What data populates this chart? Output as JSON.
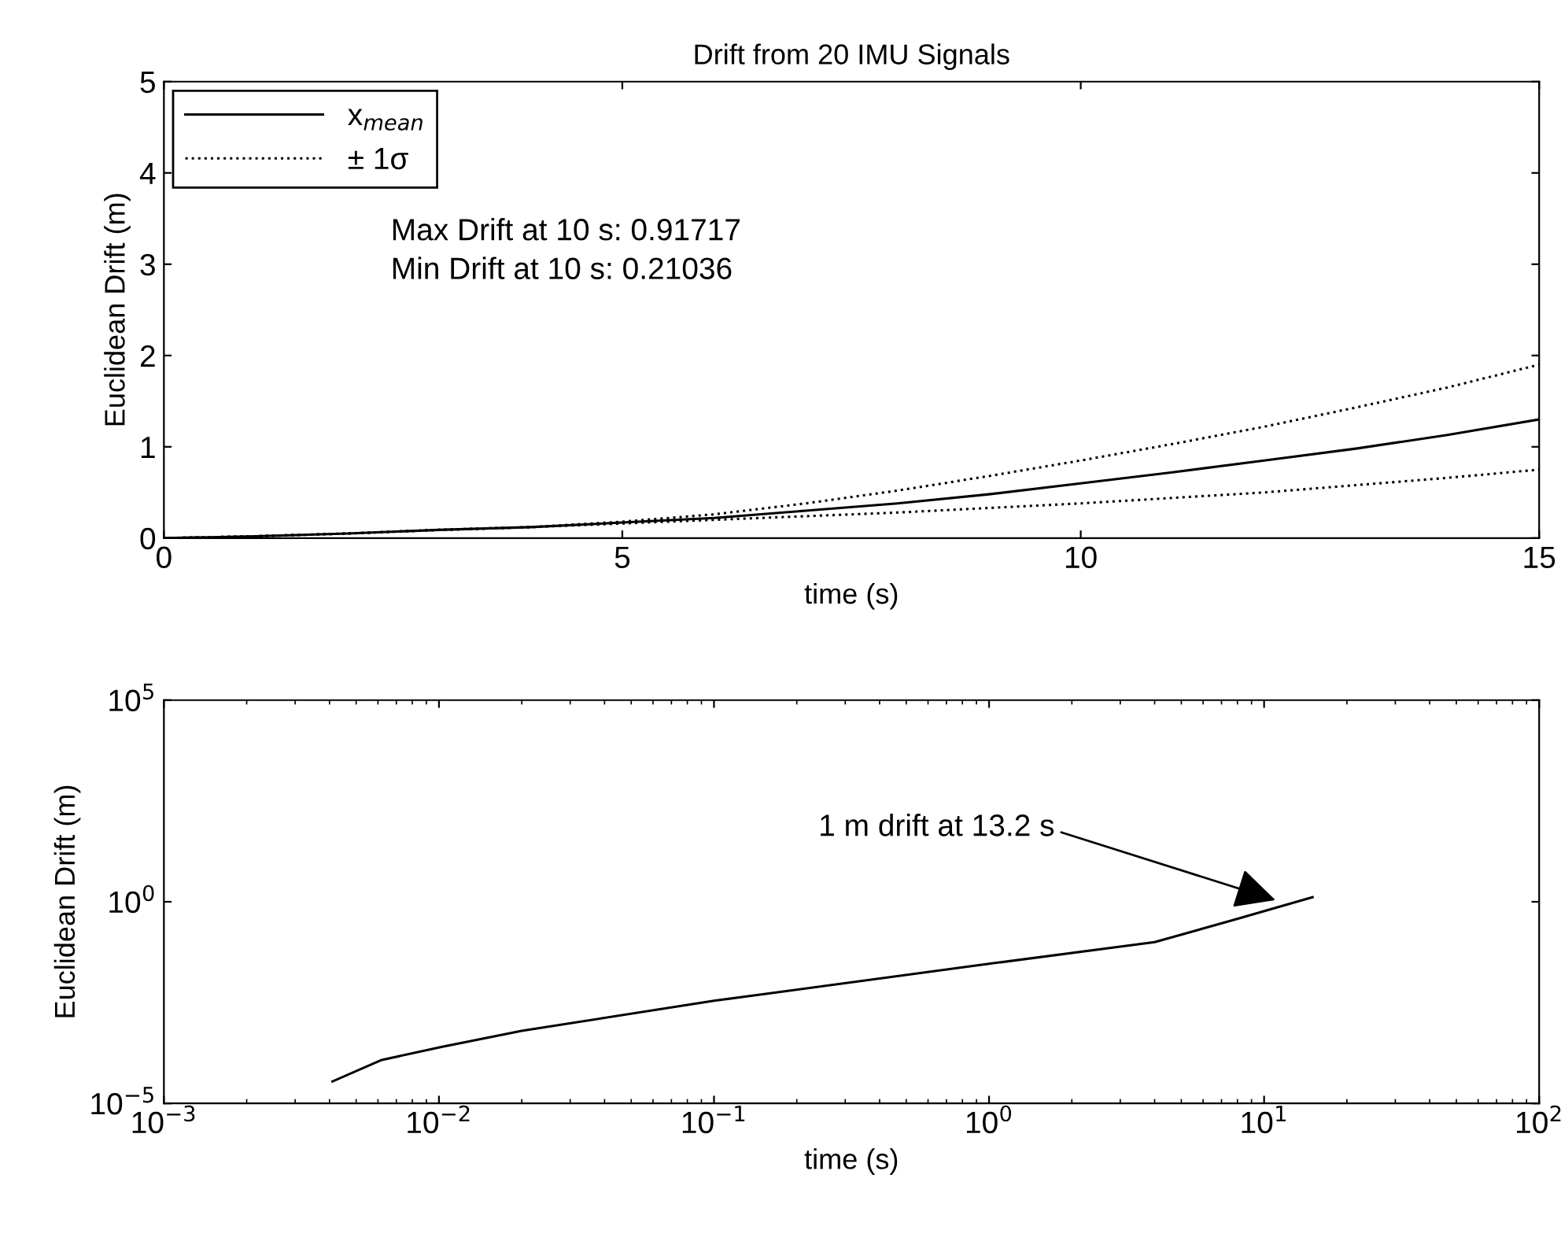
{
  "chart_data": [
    {
      "type": "line",
      "title": "Drift from 20 IMU Signals",
      "xlabel": "time (s)",
      "ylabel": "Euclidean Drift (m)",
      "x": [
        0,
        1,
        2,
        3,
        4,
        5,
        6,
        7,
        8,
        9,
        10,
        11,
        12,
        13,
        14,
        15
      ],
      "series": [
        {
          "name": "x$_{mean}$",
          "color": "#000000",
          "line_style": "solid",
          "values": [
            0,
            0.02,
            0.05,
            0.09,
            0.12,
            0.17,
            0.22,
            0.3,
            0.38,
            0.48,
            0.6,
            0.72,
            0.85,
            0.98,
            1.13,
            1.3
          ]
        },
        {
          "name": "± 1σ",
          "color": "#000000",
          "line_style": "dotted",
          "values": [
            0,
            0.02,
            0.05,
            0.09,
            0.12,
            0.18,
            0.26,
            0.38,
            0.52,
            0.68,
            0.85,
            1.03,
            1.22,
            1.43,
            1.65,
            1.9
          ]
        },
        {
          "color": "#000000",
          "line_style": "dotted",
          "values": [
            0,
            0.02,
            0.05,
            0.09,
            0.12,
            0.16,
            0.2,
            0.24,
            0.28,
            0.33,
            0.38,
            0.44,
            0.5,
            0.58,
            0.66,
            0.75
          ]
        }
      ],
      "xlim": [
        0,
        15
      ],
      "ylim": [
        0,
        5
      ],
      "xticks": [
        0,
        5,
        10,
        15
      ],
      "yticks": [
        0,
        1,
        2,
        3,
        4,
        5
      ],
      "legend": "top left",
      "grid": false,
      "annotations": [
        "Max Drift at 10 s: 0.91717",
        "Min Drift at 10 s: 0.21036"
      ]
    },
    {
      "type": "line",
      "xlabel": "time (s)",
      "ylabel": "Euclidean Drift (m)",
      "log": "xy",
      "x": [
        0.0041,
        0.0062,
        0.0102,
        0.02,
        0.1,
        1,
        4,
        7.8,
        15
      ],
      "series": [
        {
          "color": "#000000",
          "line_style": "solid",
          "values": [
            3.5e-05,
            0.00012,
            0.00025,
            0.00063,
            0.0035,
            0.029,
            0.1,
            0.36,
            1.3
          ]
        }
      ],
      "xlim": [
        0.001,
        100
      ],
      "ylim": [
        1e-05,
        100000
      ],
      "xticks": [
        {
          "value": 0.001,
          "label": "10$^{−3}$"
        },
        {
          "value": 0.01,
          "label": "10$^{−2}$"
        },
        {
          "value": 0.1,
          "label": "10$^{−1}$"
        },
        {
          "value": 1,
          "label": "10$^{0}$"
        },
        {
          "value": 10,
          "label": "10$^{1}$"
        },
        {
          "value": 100,
          "label": "10$^{2}$"
        }
      ],
      "yticks": [
        {
          "value": 1e-05,
          "label": "10$^{−5}$"
        },
        {
          "value": 1,
          "label": "10$^{0}$"
        },
        {
          "value": 100000,
          "label": "10$^{5}$"
        }
      ],
      "grid": false,
      "annotations": [
        {
          "text": "1 m drift at 13.2 s",
          "x": 11,
          "y": 1.1
        }
      ]
    }
  ]
}
